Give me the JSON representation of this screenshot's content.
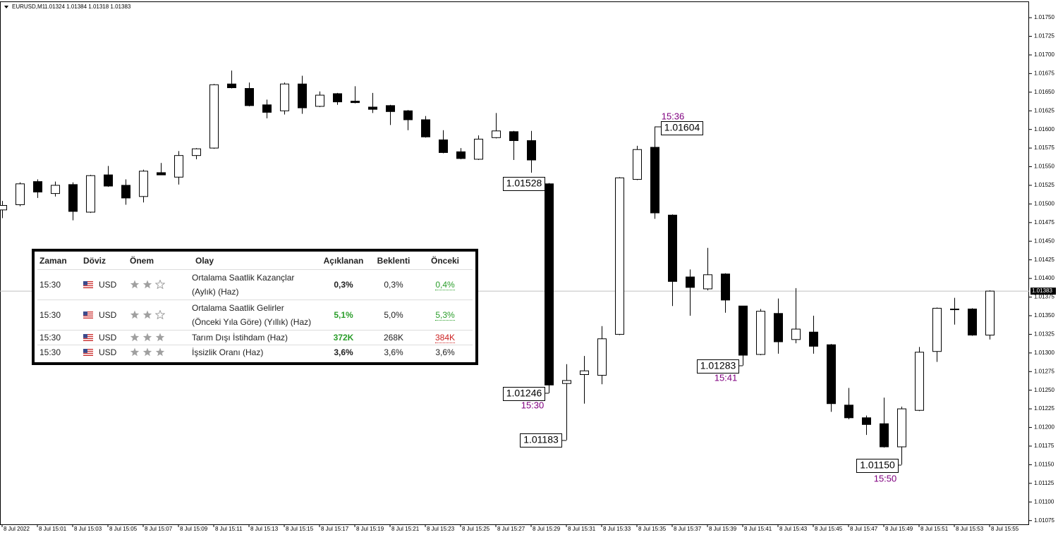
{
  "chart_data": {
    "type": "candlestick",
    "header": {
      "symbol": "EURUSD,M1",
      "ohlc": "1.01324 1.01384 1.01318 1.01383"
    },
    "categories": [
      "8 Jul 2022",
      null,
      "8 Jul 15:01",
      null,
      "8 Jul 15:03",
      null,
      "8 Jul 15:05",
      null,
      "8 Jul 15:07",
      null,
      "8 Jul 15:09",
      null,
      "8 Jul 15:11",
      null,
      "8 Jul 15:13",
      null,
      "8 Jul 15:15",
      null,
      "8 Jul 15:17",
      null,
      "8 Jul 15:19",
      null,
      "8 Jul 15:21",
      null,
      "8 Jul 15:23",
      null,
      "8 Jul 15:25",
      null,
      "8 Jul 15:27",
      null,
      "8 Jul 15:29",
      null,
      "8 Jul 15:31",
      null,
      "8 Jul 15:33",
      null,
      "8 Jul 15:35",
      null,
      "8 Jul 15:37",
      null,
      "8 Jul 15:39",
      null,
      "8 Jul 15:41",
      null,
      "8 Jul 15:43",
      null,
      "8 Jul 15:45",
      null,
      "8 Jul 15:47",
      null,
      "8 Jul 15:49",
      null,
      "8 Jul 15:51",
      null,
      "8 Jul 15:53",
      null,
      "8 Jul 15:55"
    ],
    "open": [
      1.01492,
      1.01499,
      1.0153,
      1.01514,
      1.01526,
      1.01489,
      1.01539,
      1.01525,
      1.0151,
      1.01542,
      1.01536,
      1.01565,
      1.01575,
      1.01661,
      1.01655,
      1.01633,
      1.01625,
      1.01661,
      1.01631,
      1.01648,
      1.01638,
      1.0163,
      1.01632,
      1.01625,
      1.01613,
      1.01586,
      1.0157,
      1.0156,
      1.01589,
      1.01597,
      1.01585,
      1.01527,
      1.01259,
      1.01271,
      1.0127,
      1.01325,
      1.01533,
      1.01576,
      1.01485,
      1.01402,
      1.01386,
      1.01406,
      1.01363,
      1.01298,
      1.01353,
      1.01318,
      1.01328,
      1.01311,
      1.0123,
      1.01213,
      1.01205,
      1.01174,
      1.01223,
      1.01302,
      1.01358,
      1.01359,
      1.01324
    ],
    "high": [
      1.01504,
      1.01529,
      1.01533,
      1.0153,
      1.01529,
      1.01539,
      1.01551,
      1.01533,
      1.01546,
      1.01555,
      1.01571,
      1.01575,
      1.01661,
      1.01679,
      1.01663,
      1.0164,
      1.01663,
      1.01672,
      1.01651,
      1.01649,
      1.01658,
      1.01649,
      1.01633,
      1.01626,
      1.01618,
      1.01599,
      1.01575,
      1.01592,
      1.01622,
      1.01598,
      1.01598,
      1.01528,
      1.01285,
      1.01296,
      1.01336,
      1.01536,
      1.01578,
      1.01604,
      1.01486,
      1.01412,
      1.01441,
      1.01407,
      1.01363,
      1.01359,
      1.01373,
      1.01387,
      1.0135,
      1.01312,
      1.01253,
      1.01216,
      1.0124,
      1.01228,
      1.01308,
      1.01361,
      1.01374,
      1.0136,
      1.01384
    ],
    "low": [
      1.01481,
      1.01497,
      1.01508,
      1.0151,
      1.01478,
      1.01488,
      1.01523,
      1.01499,
      1.01502,
      1.01539,
      1.01526,
      1.0156,
      1.01574,
      1.01655,
      1.01631,
      1.01615,
      1.0162,
      1.01621,
      1.0163,
      1.01633,
      1.01635,
      1.01622,
      1.01606,
      1.01599,
      1.01589,
      1.01568,
      1.0156,
      1.01559,
      1.01588,
      1.01559,
      1.01542,
      1.01246,
      1.01183,
      1.01232,
      1.01258,
      1.01324,
      1.01532,
      1.0148,
      1.01363,
      1.0135,
      1.01384,
      1.01354,
      1.01283,
      1.01297,
      1.01299,
      1.01313,
      1.01299,
      1.01221,
      1.01211,
      1.0119,
      1.01173,
      1.0115,
      1.01222,
      1.01288,
      1.01338,
      1.01323,
      1.01318
    ],
    "close": [
      1.01498,
      1.01527,
      1.01516,
      1.01525,
      1.0149,
      1.01538,
      1.01524,
      1.01508,
      1.01544,
      1.01539,
      1.01565,
      1.01574,
      1.0166,
      1.01656,
      1.01632,
      1.01623,
      1.01661,
      1.01629,
      1.01646,
      1.01637,
      1.01636,
      1.01627,
      1.01624,
      1.01613,
      1.0159,
      1.01569,
      1.01561,
      1.01587,
      1.01598,
      1.01585,
      1.01559,
      1.01257,
      1.01263,
      1.01276,
      1.01319,
      1.01535,
      1.01573,
      1.01488,
      1.01396,
      1.01388,
      1.01405,
      1.01371,
      1.01297,
      1.01356,
      1.01315,
      1.01332,
      1.01309,
      1.01232,
      1.01213,
      1.01204,
      1.01174,
      1.01225,
      1.01301,
      1.0136,
      1.01359,
      1.01324,
      1.01383
    ],
    "up_color": "#ffffff",
    "down_color": "#000000",
    "last_price": 1.01383,
    "last_price_color": "#c0c0c0",
    "ylim": [
      1.0107,
      1.01769
    ],
    "yticks": [
      1.01075,
      {
        "value": 1.011,
        "label": "1.01100"
      },
      1.01125,
      {
        "value": 1.0115,
        "label": "1.01150"
      },
      1.01175,
      {
        "value": 1.012,
        "label": "1.01200"
      },
      1.01225,
      {
        "value": 1.0125,
        "label": "1.01250"
      },
      1.01275,
      {
        "value": 1.013,
        "label": "1.01300"
      },
      1.01325,
      {
        "value": 1.0135,
        "label": "1.01350"
      },
      1.01375,
      {
        "value": 1.014,
        "label": "1.01400"
      },
      1.01425,
      {
        "value": 1.0145,
        "label": "1.01450"
      },
      1.01475,
      {
        "value": 1.015,
        "label": "1.01500"
      },
      1.01525,
      {
        "value": 1.0155,
        "label": "1.01550"
      },
      1.01575,
      {
        "value": 1.016,
        "label": "1.01600"
      },
      1.01625,
      {
        "value": 1.0165,
        "label": "1.01650"
      },
      1.01675,
      {
        "value": 1.017,
        "label": "1.01700"
      },
      1.01725,
      {
        "value": 1.0175,
        "label": "1.01750"
      }
    ],
    "grid": false,
    "annotations": {
      "prices": [
        "1.01528",
        "1.01246",
        "1.01183",
        "1.01604",
        "1.01283",
        "1.01150"
      ],
      "times": [
        "15:30",
        "15:36",
        "15:41",
        "15:50"
      ]
    }
  },
  "table": {
    "columns": [
      "Zaman",
      "Döviz",
      "Önem",
      "Olay",
      "Açıklanan",
      "Beklenti",
      "Önceki"
    ],
    "rows": [
      [
        "15:30",
        "USD",
        "Ortalama Saatlik Kazançlar (Aylık) (Haz)",
        "0,3%",
        "0,3%",
        "0,4%"
      ],
      [
        "15:30",
        "USD",
        "Ortalama Saatlik Gelirler (Önceki Yıla Göre) (Yıllık) (Haz)",
        "5,1%",
        "5,0%",
        "5,3%"
      ],
      [
        "15:30",
        "USD",
        "Tarım Dışı İstihdam (Haz)",
        "372K",
        "268K",
        "384K"
      ],
      [
        "15:30",
        "USD",
        "İşsizlik Oranı (Haz)",
        "3,6%",
        "3,6%",
        "3,6%"
      ]
    ]
  }
}
